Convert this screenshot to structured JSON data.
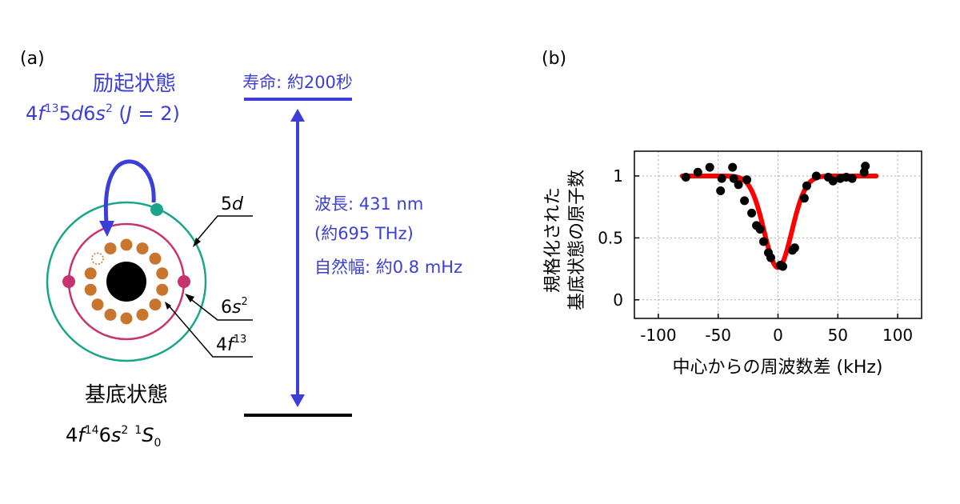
{
  "panel_a": {
    "label": "(a)",
    "excited": {
      "title": "励起状態",
      "config": {
        "a": "4",
        "f": "f",
        "sup13": "13",
        "b": "5",
        "d": "d",
        "c": "6",
        "s": "s",
        "sup2": "2",
        "open": " (",
        "J": "J",
        "eq": " = 2)"
      }
    },
    "lifetime": "寿命: 約200秒",
    "transition": {
      "wavelength": "波長: 431 nm",
      "frequency": "(約695 THz)",
      "linewidth": "自然幅: 約0.8 mHz"
    },
    "orbital_labels": {
      "d5": {
        "n": "5",
        "l": "d"
      },
      "s6": {
        "n": "6",
        "l": "s",
        "sup": "2"
      },
      "f4": {
        "n": "4",
        "l": "f",
        "sup": "13"
      }
    },
    "ground": {
      "title": "基底状態",
      "config": {
        "a": "4",
        "f": "f",
        "sup14": "14",
        "b": "6",
        "s": "s",
        "sup2": "2",
        "pre1": "1",
        "S": "S",
        "sub0": "0"
      }
    },
    "colors": {
      "accent": "#3b3fd8",
      "outer_orbit": "#1aa58a",
      "inner_orbit": "#c8326e",
      "f_electron": "#c8762e"
    }
  },
  "panel_b": {
    "label": "(b)",
    "chart_data": {
      "type": "scatter",
      "xlabel": "中心からの周波数差 (kHz)",
      "ylabel_line1": "規格化された",
      "ylabel_line2": "基底状態の原子数",
      "xlim": [
        -120,
        120
      ],
      "ylim": [
        -0.15,
        1.2
      ],
      "xticks": [
        -100,
        -50,
        0,
        50,
        100
      ],
      "yticks": [
        0,
        0.5,
        1
      ],
      "ytick_labels": [
        "0",
        "0.5",
        "1"
      ],
      "grid": true,
      "points": [
        {
          "x": -77,
          "y": 0.99
        },
        {
          "x": -67,
          "y": 1.03
        },
        {
          "x": -57,
          "y": 1.07
        },
        {
          "x": -48,
          "y": 0.88
        },
        {
          "x": -47,
          "y": 0.98
        },
        {
          "x": -38,
          "y": 1.07
        },
        {
          "x": -37,
          "y": 0.98
        },
        {
          "x": -33,
          "y": 0.93
        },
        {
          "x": -28,
          "y": 0.8
        },
        {
          "x": -26,
          "y": 0.97
        },
        {
          "x": -22,
          "y": 0.7
        },
        {
          "x": -18,
          "y": 0.6
        },
        {
          "x": -15,
          "y": 0.57
        },
        {
          "x": -12,
          "y": 0.47
        },
        {
          "x": -8,
          "y": 0.38
        },
        {
          "x": -6,
          "y": 0.34
        },
        {
          "x": 2,
          "y": 0.28
        },
        {
          "x": 4,
          "y": 0.27
        },
        {
          "x": 12,
          "y": 0.4
        },
        {
          "x": 14,
          "y": 0.42
        },
        {
          "x": 22,
          "y": 0.82
        },
        {
          "x": 24,
          "y": 0.92
        },
        {
          "x": 32,
          "y": 1.0
        },
        {
          "x": 42,
          "y": 0.99
        },
        {
          "x": 46,
          "y": 0.96
        },
        {
          "x": 52,
          "y": 0.98
        },
        {
          "x": 57,
          "y": 0.99
        },
        {
          "x": 62,
          "y": 0.98
        },
        {
          "x": 72,
          "y": 1.03
        },
        {
          "x": 73,
          "y": 1.08
        }
      ],
      "fit": {
        "baseline": 1.0,
        "depth": 0.74,
        "center": 0,
        "sigma": 11.5,
        "x_range": [
          -80,
          82
        ]
      },
      "colors": {
        "points": "#000000",
        "fit": "#ff0000",
        "grid": "#aaaaaa"
      }
    }
  }
}
